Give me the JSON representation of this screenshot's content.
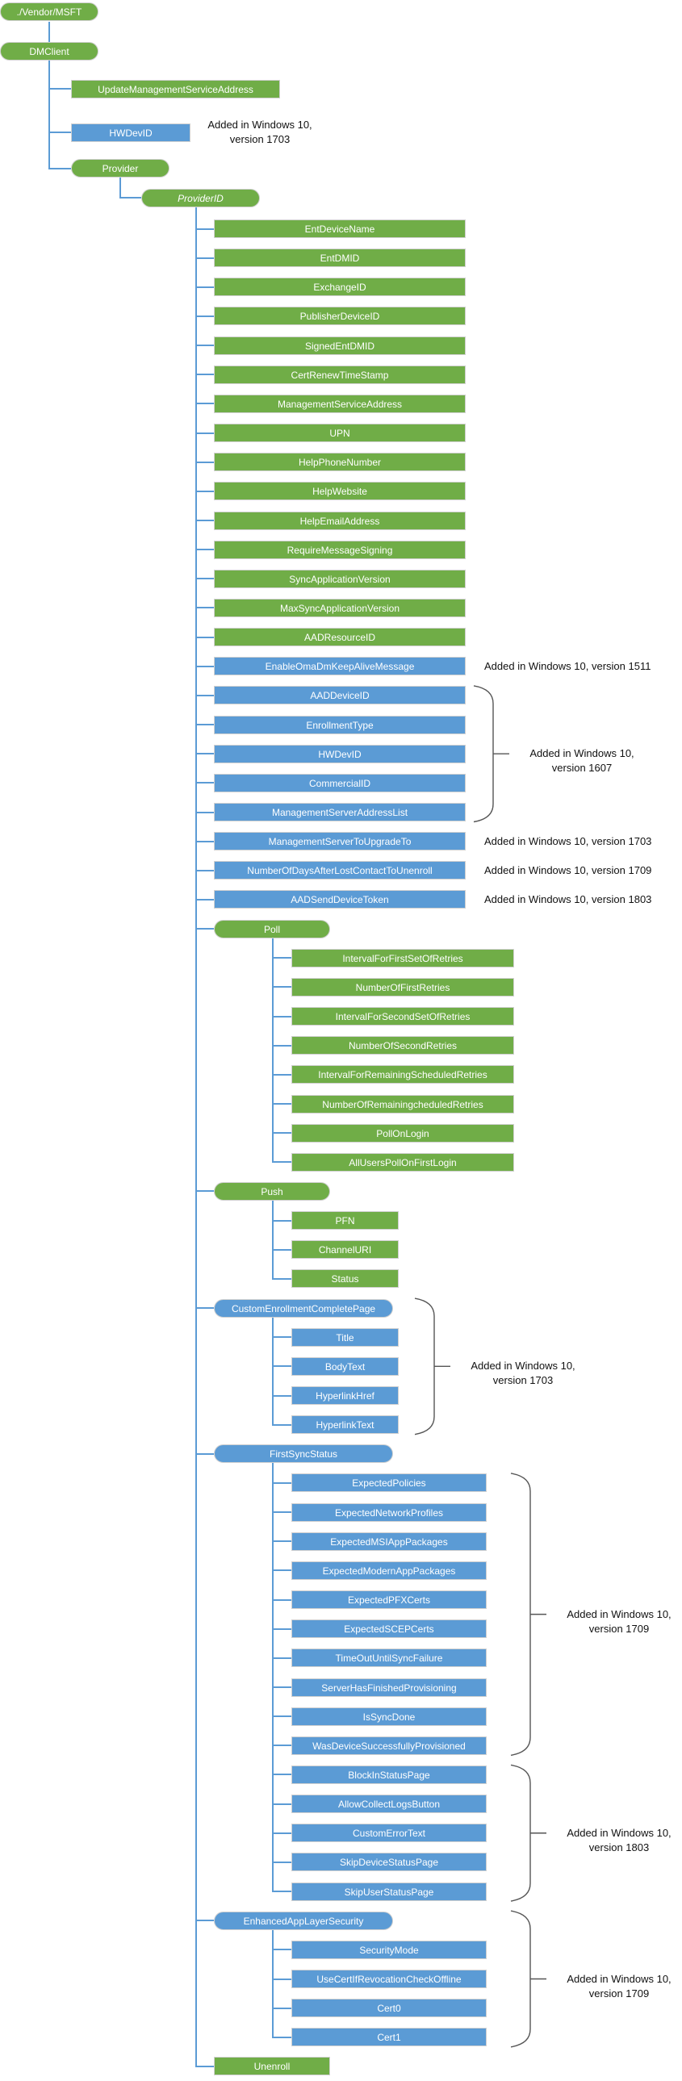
{
  "colors": {
    "green": "#70ad47",
    "blue": "#5b9bd5",
    "connector": "#5b9bd5",
    "bracket": "#555555"
  },
  "nodes": {
    "vendor": "./Vendor/MSFT",
    "dmclient": "DMClient",
    "update_msa": "UpdateManagementServiceAddress",
    "hwdevid": "HWDevID",
    "hwdevid_note": [
      "Added in Windows 10,",
      "version 1703"
    ],
    "provider": "Provider",
    "providerid": "ProviderID"
  },
  "provider_children": [
    {
      "label": "EntDeviceName",
      "color": "green",
      "shape": "box"
    },
    {
      "label": "EntDMID",
      "color": "green",
      "shape": "box"
    },
    {
      "label": "ExchangeID",
      "color": "green",
      "shape": "box"
    },
    {
      "label": "PublisherDeviceID",
      "color": "green",
      "shape": "box"
    },
    {
      "label": "SignedEntDMID",
      "color": "green",
      "shape": "box"
    },
    {
      "label": "CertRenewTimeStamp",
      "color": "green",
      "shape": "box"
    },
    {
      "label": "ManagementServiceAddress",
      "color": "green",
      "shape": "box"
    },
    {
      "label": "UPN",
      "color": "green",
      "shape": "box"
    },
    {
      "label": "HelpPhoneNumber",
      "color": "green",
      "shape": "box"
    },
    {
      "label": "HelpWebsite",
      "color": "green",
      "shape": "box"
    },
    {
      "label": "HelpEmailAddress",
      "color": "green",
      "shape": "box"
    },
    {
      "label": "RequireMessageSigning",
      "color": "green",
      "shape": "box"
    },
    {
      "label": "SyncApplicationVersion",
      "color": "green",
      "shape": "box"
    },
    {
      "label": "MaxSyncApplicationVersion",
      "color": "green",
      "shape": "box"
    },
    {
      "label": "AADResourceID",
      "color": "green",
      "shape": "box"
    },
    {
      "label": "EnableOmaDmKeepAliveMessage",
      "color": "blue",
      "shape": "box",
      "note": "Added in Windows 10, version 1511"
    },
    {
      "label": "AADDeviceID",
      "color": "blue",
      "shape": "box"
    },
    {
      "label": "EnrollmentType",
      "color": "blue",
      "shape": "box"
    },
    {
      "label": "HWDevID",
      "color": "blue",
      "shape": "box"
    },
    {
      "label": "CommercialID",
      "color": "blue",
      "shape": "box"
    },
    {
      "label": "ManagementServerAddressList",
      "color": "blue",
      "shape": "box"
    },
    {
      "label": "ManagementServerToUpgradeTo",
      "color": "blue",
      "shape": "box",
      "note": "Added in Windows 10, version 1703"
    },
    {
      "label": "NumberOfDaysAfterLostContactToUnenroll",
      "color": "blue",
      "shape": "box",
      "note": "Added in Windows 10, version 1709"
    },
    {
      "label": "AADSendDeviceToken",
      "color": "blue",
      "shape": "box",
      "note": "Added in Windows 10, version 1803"
    },
    {
      "label": "Poll",
      "color": "green",
      "shape": "pill",
      "children": [
        "IntervalForFirstSetOfRetries",
        "NumberOfFirstRetries",
        "IntervalForSecondSetOfRetries",
        "NumberOfSecondRetries",
        "IntervalForRemainingScheduledRetries",
        "NumberOfRemainingcheduledRetries",
        "PollOnLogin",
        "AllUsersPollOnFirstLogin"
      ]
    },
    {
      "label": "Push",
      "color": "green",
      "shape": "pill",
      "children": [
        "PFN",
        "ChannelURI",
        "Status"
      ]
    },
    {
      "label": "CustomEnrollmentCompletePage",
      "color": "blue",
      "shape": "pill",
      "children": [
        "Title",
        "BodyText",
        "HyperlinkHref",
        "HyperlinkText"
      ]
    },
    {
      "label": "FirstSyncStatus",
      "color": "blue",
      "shape": "pill",
      "children": [
        "ExpectedPolicies",
        "ExpectedNetworkProfiles",
        "ExpectedMSIAppPackages",
        "ExpectedModernAppPackages",
        "ExpectedPFXCerts",
        "ExpectedSCEPCerts",
        "TimeOutUntilSyncFailure",
        "ServerHasFinishedProvisioning",
        "IsSyncDone",
        "WasDeviceSuccessfullyProvisioned",
        "BlockInStatusPage",
        "AllowCollectLogsButton",
        "CustomErrorText",
        "SkipDeviceStatusPage",
        "SkipUserStatusPage"
      ]
    },
    {
      "label": "EnhancedAppLayerSecurity",
      "color": "blue",
      "shape": "pill",
      "children": [
        "SecurityMode",
        "UseCertIfRevocationCheckOffline",
        "Cert0",
        "Cert1"
      ]
    },
    {
      "label": "Unenroll",
      "color": "green",
      "shape": "box"
    }
  ],
  "bracket_notes": [
    {
      "lines": [
        "Added in Windows 10,",
        "version 1607"
      ],
      "first": "AADDeviceID",
      "last": "ManagementServerAddressList"
    },
    {
      "lines": [
        "Added in Windows 10,",
        "version 1703"
      ],
      "first": "CustomEnrollmentCompletePage",
      "last": "HyperlinkText"
    },
    {
      "lines": [
        "Added in Windows 10,",
        "version 1709"
      ],
      "first": "ExpectedPolicies",
      "last": "WasDeviceSuccessfullyProvisioned"
    },
    {
      "lines": [
        "Added in Windows 10,",
        "version 1803"
      ],
      "first": "BlockInStatusPage",
      "last": "SkipUserStatusPage"
    },
    {
      "lines": [
        "Added in Windows 10,",
        "version 1709"
      ],
      "first": "EnhancedAppLayerSecurity",
      "last": "Cert1"
    }
  ]
}
